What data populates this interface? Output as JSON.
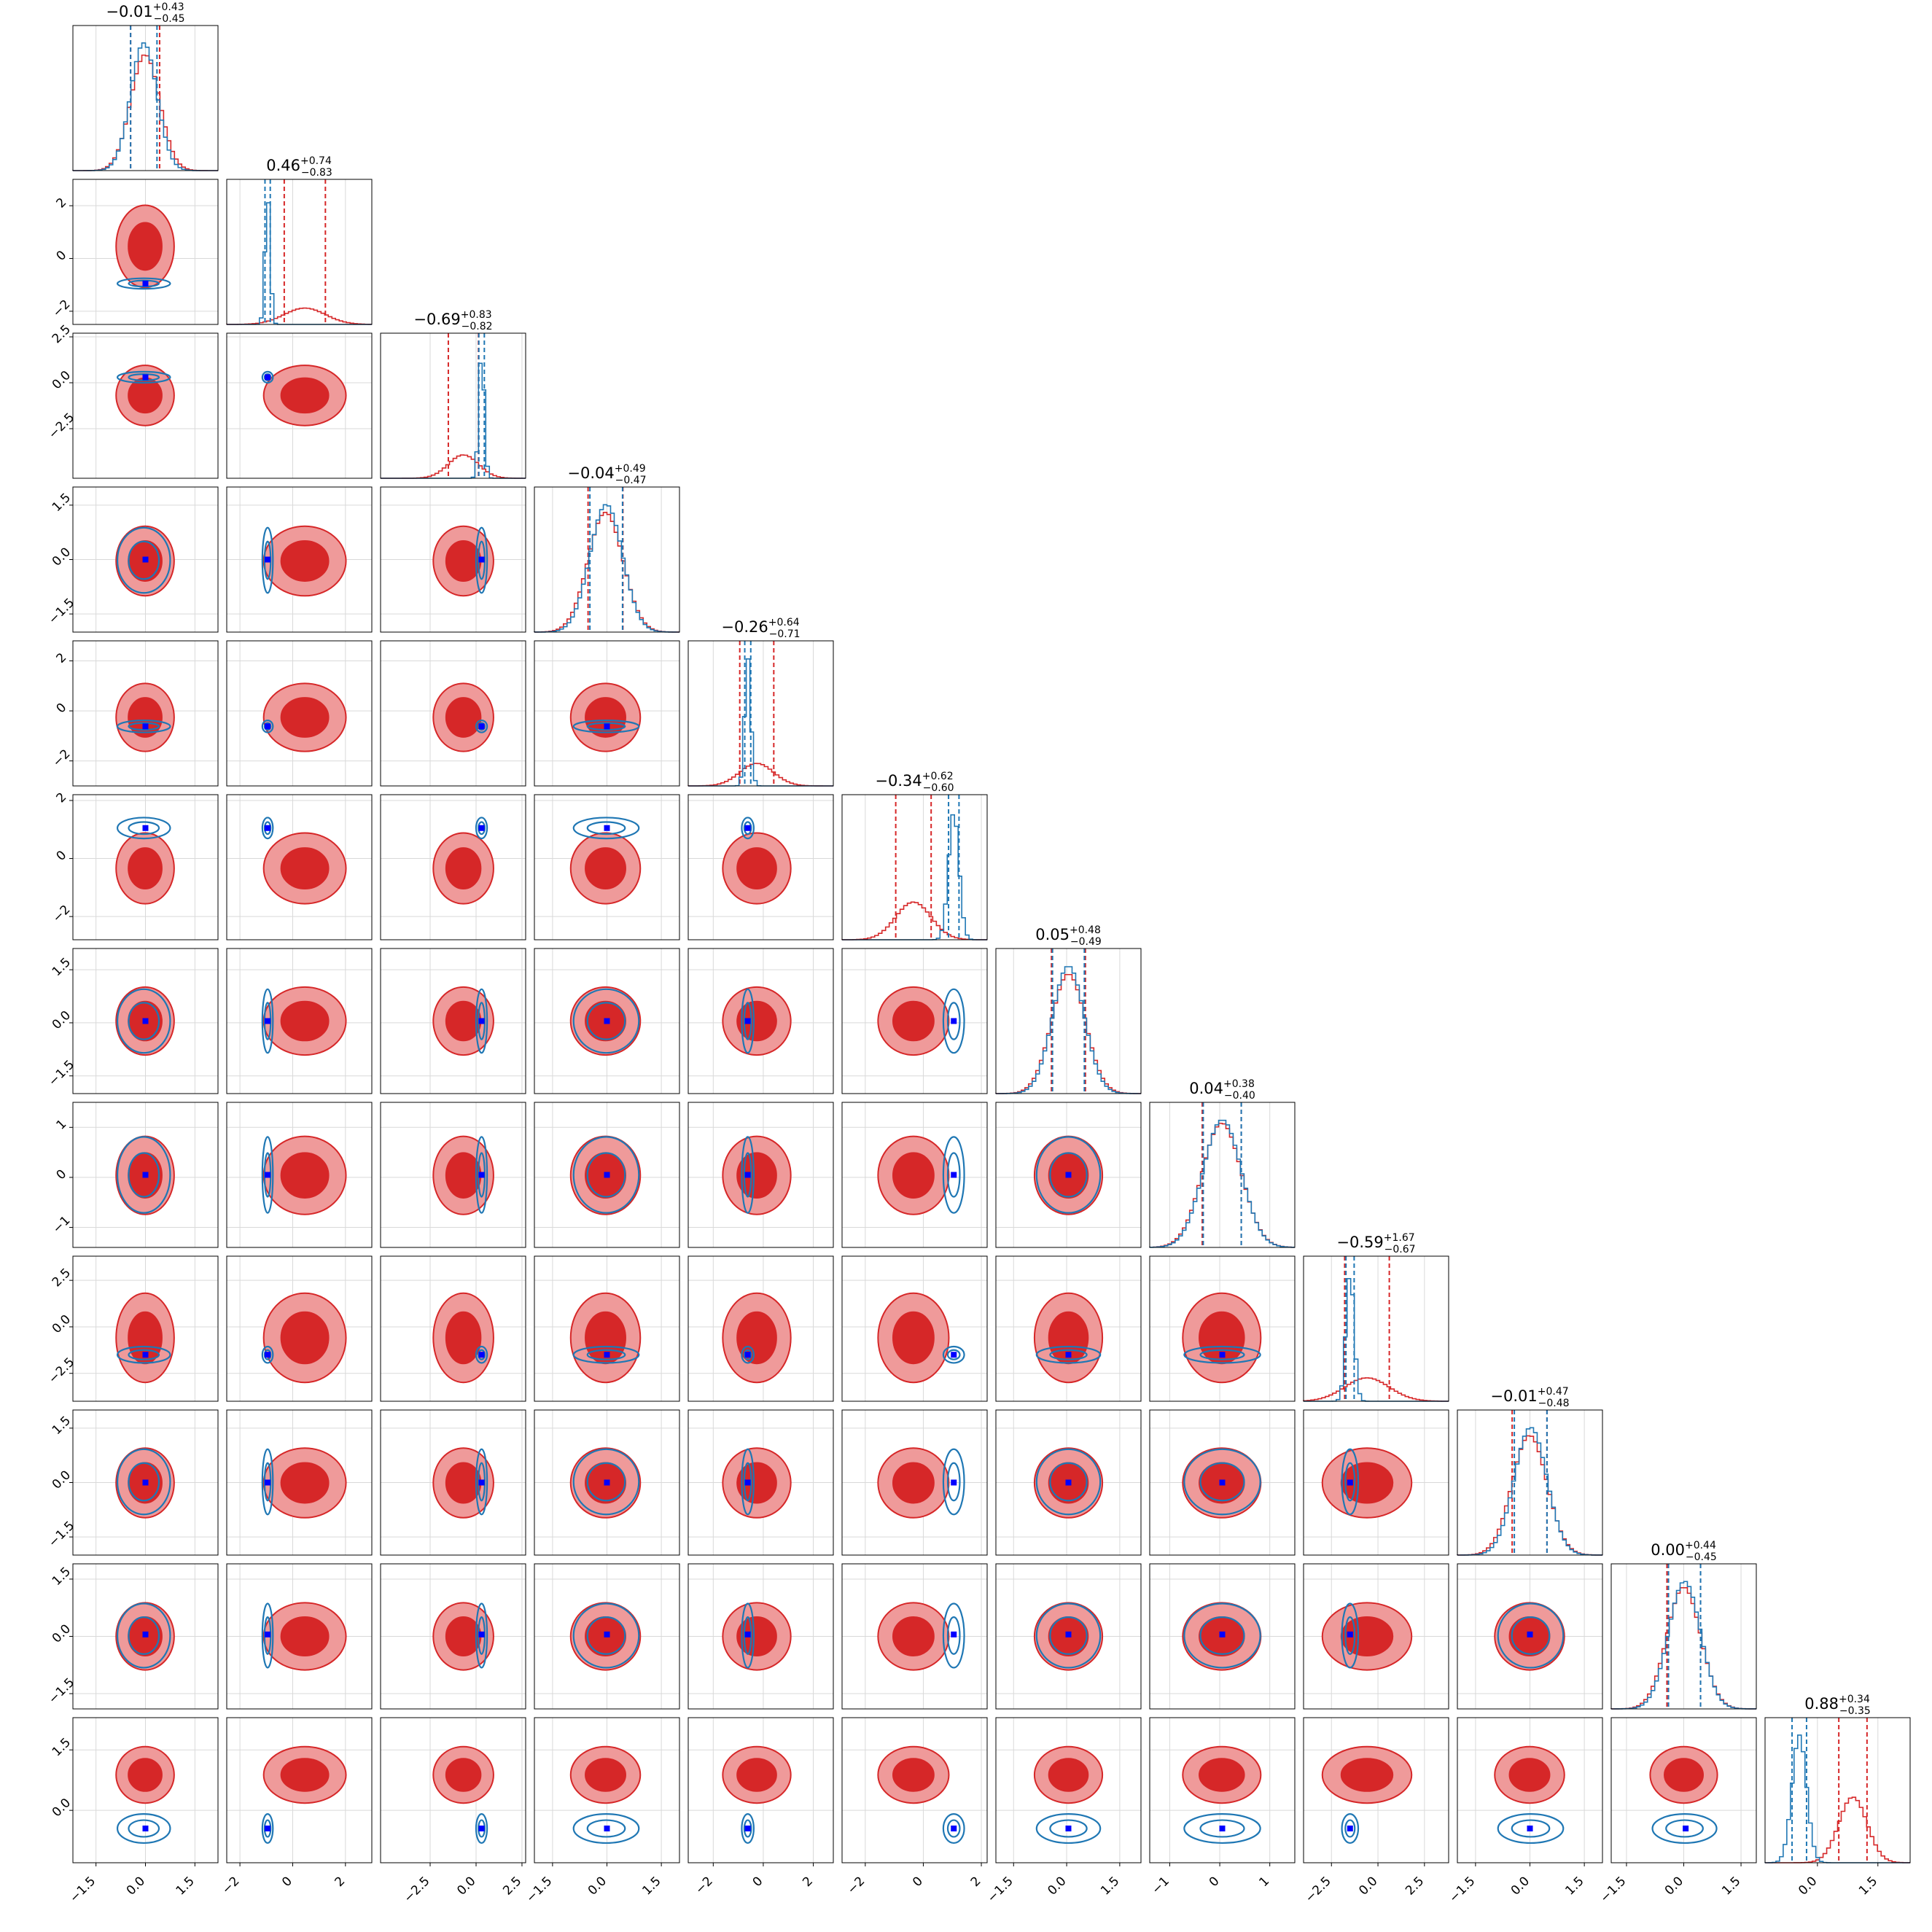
{
  "colors": {
    "red_fill_dark": "#d62728",
    "red_fill_light": "#ef9a9a",
    "red_line": "#d62728",
    "blue_line": "#1f77b4",
    "marker": "#0000ff",
    "grid": "#d9d9d9"
  },
  "chart_data": {
    "type": "corner",
    "n_params": 12,
    "grid": true,
    "series": [
      {
        "name": "",
        "color": "#d62728",
        "style": "filled 2D density contours + step histograms"
      },
      {
        "name": "",
        "color": "#1f77b4",
        "style": "2D density contours + step histograms"
      }
    ],
    "params": [
      {
        "title": "−0.01",
        "plus": "+0.43",
        "minus": "−0.45",
        "range": [
          -2.2,
          2.2
        ],
        "ticks": [
          "−1.5",
          "0.0",
          "1.5"
        ],
        "tick_values": [
          -1.5,
          0.0,
          1.5
        ],
        "red": {
          "mu": -0.01,
          "sd": 0.44
        },
        "blue": {
          "mu": -0.05,
          "sd": 0.4
        },
        "true_value": 0.0
      },
      {
        "title": "0.46",
        "plus": "+0.74",
        "minus": "−0.83",
        "range": [
          -2.5,
          3.0
        ],
        "ticks": [
          "−2",
          "0",
          "2"
        ],
        "tick_values": [
          -2,
          0,
          2
        ],
        "red": {
          "mu": 0.46,
          "sd": 0.78
        },
        "blue": {
          "mu": -0.95,
          "sd": 0.1
        },
        "true_value": -0.95
      },
      {
        "title": "−0.69",
        "plus": "+0.83",
        "minus": "−0.82",
        "range": [
          -5.2,
          2.7
        ],
        "ticks": [
          "−2.5",
          "0.0",
          "2.5"
        ],
        "tick_values": [
          -2.5,
          0.0,
          2.5
        ],
        "red": {
          "mu": -0.69,
          "sd": 0.82
        },
        "blue": {
          "mu": 0.3,
          "sd": 0.15
        },
        "true_value": 0.3
      },
      {
        "title": "−0.04",
        "plus": "+0.49",
        "minus": "−0.47",
        "range": [
          -2.0,
          2.0
        ],
        "ticks": [
          "−1.5",
          "0.0",
          "1.5"
        ],
        "tick_values": [
          -1.5,
          0.0,
          1.5
        ],
        "red": {
          "mu": -0.04,
          "sd": 0.48
        },
        "blue": {
          "mu": -0.02,
          "sd": 0.45
        },
        "true_value": 0.0
      },
      {
        "title": "−0.26",
        "plus": "+0.64",
        "minus": "−0.71",
        "range": [
          -3.0,
          2.8
        ],
        "ticks": [
          "−2",
          "0",
          "2"
        ],
        "tick_values": [
          -2,
          0,
          2
        ],
        "red": {
          "mu": -0.26,
          "sd": 0.68
        },
        "blue": {
          "mu": -0.62,
          "sd": 0.12
        },
        "true_value": -0.62
      },
      {
        "title": "−0.34",
        "plus": "+0.62",
        "minus": "−0.60",
        "range": [
          -2.8,
          2.2
        ],
        "ticks": [
          "−2",
          "0",
          "2"
        ],
        "tick_values": [
          -2,
          0,
          2
        ],
        "red": {
          "mu": -0.34,
          "sd": 0.61
        },
        "blue": {
          "mu": 1.05,
          "sd": 0.18
        },
        "true_value": 1.05
      },
      {
        "title": "0.05",
        "plus": "+0.48",
        "minus": "−0.49",
        "range": [
          -2.0,
          2.1
        ],
        "ticks": [
          "−1.5",
          "0.0",
          "1.5"
        ],
        "tick_values": [
          -1.5,
          0.0,
          1.5
        ],
        "red": {
          "mu": 0.05,
          "sd": 0.48
        },
        "blue": {
          "mu": 0.05,
          "sd": 0.45
        },
        "true_value": 0.05
      },
      {
        "title": "0.04",
        "plus": "+0.38",
        "minus": "−0.40",
        "range": [
          -1.4,
          1.5
        ],
        "ticks": [
          "−1",
          "0",
          "1"
        ],
        "tick_values": [
          -1,
          0,
          1
        ],
        "red": {
          "mu": 0.04,
          "sd": 0.39
        },
        "blue": {
          "mu": 0.05,
          "sd": 0.38
        },
        "true_value": 0.05
      },
      {
        "title": "−0.59",
        "plus": "+1.67",
        "minus": "−0.67",
        "range": [
          -4.0,
          3.8
        ],
        "ticks": [
          "−2.5",
          "0.0",
          "2.5"
        ],
        "tick_values": [
          -2.5,
          0.0,
          2.5
        ],
        "red": {
          "mu": -0.59,
          "sd": 1.2
        },
        "blue": {
          "mu": -1.5,
          "sd": 0.22
        },
        "true_value": -1.5
      },
      {
        "title": "−0.01",
        "plus": "+0.47",
        "minus": "−0.48",
        "range": [
          -2.0,
          2.0
        ],
        "ticks": [
          "−1.5",
          "0.0",
          "1.5"
        ],
        "tick_values": [
          -1.5,
          0.0,
          1.5
        ],
        "red": {
          "mu": -0.01,
          "sd": 0.48
        },
        "blue": {
          "mu": 0.02,
          "sd": 0.45
        },
        "true_value": 0.0
      },
      {
        "title": "0.00",
        "plus": "+0.44",
        "minus": "−0.45",
        "range": [
          -1.9,
          1.9
        ],
        "ticks": [
          "−1.5",
          "0.0",
          "1.5"
        ],
        "tick_values": [
          -1.5,
          0.0,
          1.5
        ],
        "red": {
          "mu": 0.0,
          "sd": 0.44
        },
        "blue": {
          "mu": 0.02,
          "sd": 0.42
        },
        "true_value": 0.05
      },
      {
        "title": "0.88",
        "plus": "+0.34",
        "minus": "−0.35",
        "range": [
          -1.3,
          2.3
        ],
        "ticks": [
          "0.0",
          "1.5"
        ],
        "tick_values": [
          0.0,
          1.5
        ],
        "red": {
          "mu": 0.88,
          "sd": 0.35
        },
        "blue": {
          "mu": -0.45,
          "sd": 0.18
        },
        "true_value": -0.45
      }
    ]
  }
}
